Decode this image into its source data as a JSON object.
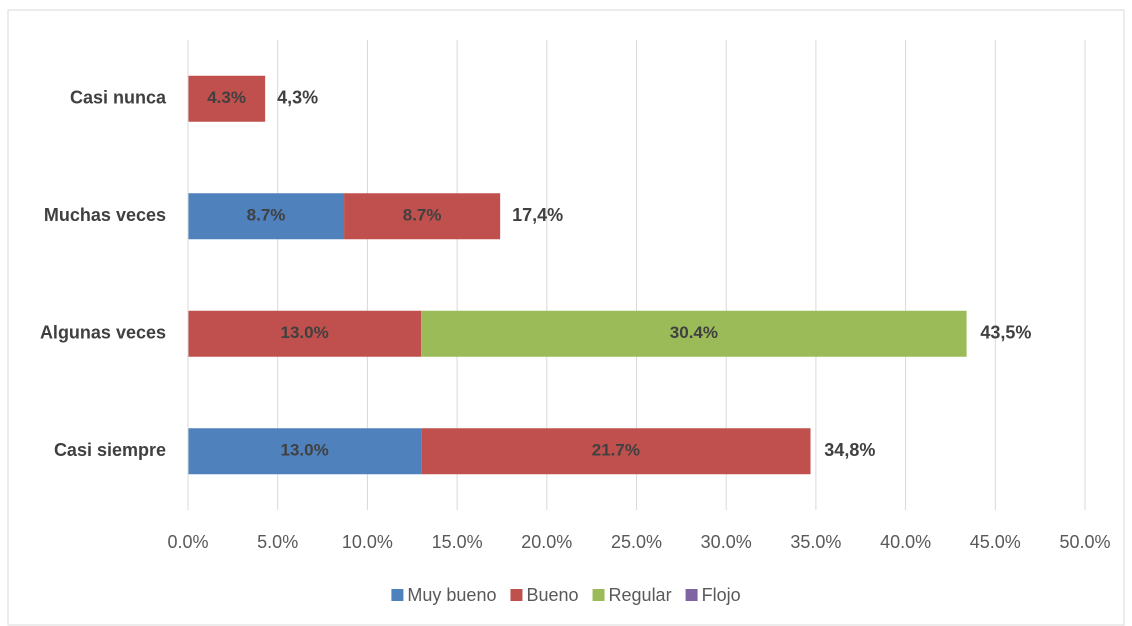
{
  "chart_data": {
    "type": "stacked-bar-horizontal",
    "categories": [
      "Casi nunca",
      "Muchas veces",
      "Algunas veces",
      "Casi siempre"
    ],
    "series": [
      {
        "name": "Muy bueno",
        "color": "#4f81bd",
        "values": [
          null,
          8.7,
          null,
          13.0
        ],
        "value_labels": [
          null,
          "8.7%",
          null,
          "13.0%"
        ]
      },
      {
        "name": "Bueno",
        "color": "#c0504d",
        "values": [
          4.3,
          8.7,
          13.0,
          21.7
        ],
        "value_labels": [
          "4.3%",
          "8.7%",
          "13.0%",
          "21.7%"
        ]
      },
      {
        "name": "Regular",
        "color": "#9bbb59",
        "values": [
          null,
          null,
          30.4,
          null
        ],
        "value_labels": [
          null,
          null,
          "30.4%",
          null
        ]
      },
      {
        "name": "Flojo",
        "color": "#8064a2",
        "values": [
          null,
          null,
          null,
          null
        ]
      }
    ],
    "totals": [
      4.3,
      17.4,
      43.5,
      34.8
    ],
    "total_labels": [
      "4,3%",
      "17,4%",
      "43,5%",
      "34,8%"
    ],
    "xlim": [
      0,
      50
    ],
    "xticks": [
      {
        "value": 0,
        "label": "0.0%"
      },
      {
        "value": 5,
        "label": "5.0%"
      },
      {
        "value": 10,
        "label": "10.0%"
      },
      {
        "value": 15,
        "label": "15.0%"
      },
      {
        "value": 20,
        "label": "20.0%"
      },
      {
        "value": 25,
        "label": "25.0%"
      },
      {
        "value": 30,
        "label": "30.0%"
      },
      {
        "value": 35,
        "label": "35.0%"
      },
      {
        "value": 40,
        "label": "40.0%"
      },
      {
        "value": 45,
        "label": "45.0%"
      },
      {
        "value": 50,
        "label": "50.0%"
      }
    ],
    "grid": true,
    "legend": "bottom"
  }
}
